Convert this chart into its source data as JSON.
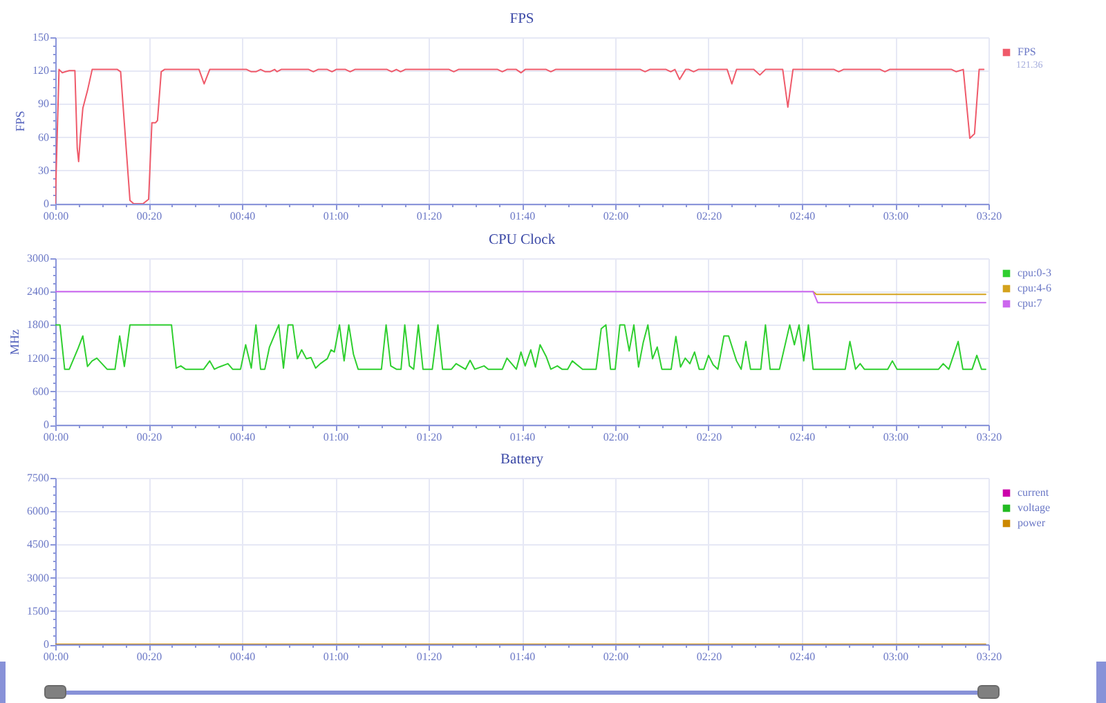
{
  "chart_data": [
    {
      "type": "line",
      "title": "FPS",
      "ylabel": "FPS",
      "xlim": [
        0,
        200
      ],
      "xticks": [
        {
          "value": 0,
          "label": "00:00"
        },
        {
          "value": 5,
          "label": null
        },
        {
          "value": 10,
          "label": null
        },
        {
          "value": 15,
          "label": null
        },
        {
          "value": 20,
          "label": "00:20"
        },
        {
          "value": 25,
          "label": null
        },
        {
          "value": 30,
          "label": null
        },
        {
          "value": 35,
          "label": null
        },
        {
          "value": 40,
          "label": "00:40"
        },
        {
          "value": 45,
          "label": null
        },
        {
          "value": 50,
          "label": null
        },
        {
          "value": 55,
          "label": null
        },
        {
          "value": 60,
          "label": "01:00"
        },
        {
          "value": 65,
          "label": null
        },
        {
          "value": 70,
          "label": null
        },
        {
          "value": 75,
          "label": null
        },
        {
          "value": 80,
          "label": "01:20"
        },
        {
          "value": 85,
          "label": null
        },
        {
          "value": 90,
          "label": null
        },
        {
          "value": 95,
          "label": null
        },
        {
          "value": 100,
          "label": "01:40"
        },
        {
          "value": 105,
          "label": null
        },
        {
          "value": 110,
          "label": null
        },
        {
          "value": 115,
          "label": null
        },
        {
          "value": 120,
          "label": "02:00"
        },
        {
          "value": 125,
          "label": null
        },
        {
          "value": 130,
          "label": null
        },
        {
          "value": 135,
          "label": null
        },
        {
          "value": 140,
          "label": "02:20"
        },
        {
          "value": 145,
          "label": null
        },
        {
          "value": 150,
          "label": null
        },
        {
          "value": 155,
          "label": null
        },
        {
          "value": 160,
          "label": "02:40"
        },
        {
          "value": 165,
          "label": null
        },
        {
          "value": 170,
          "label": null
        },
        {
          "value": 175,
          "label": null
        },
        {
          "value": 180,
          "label": "03:00"
        },
        {
          "value": 185,
          "label": null
        },
        {
          "value": 190,
          "label": null
        },
        {
          "value": 195,
          "label": null
        },
        {
          "value": 200,
          "label": "03:20"
        }
      ],
      "ylim": [
        0,
        150
      ],
      "yticks": [
        0,
        {
          "value": 7.5,
          "label": null
        },
        {
          "value": 15,
          "label": null
        },
        {
          "value": 22.5,
          "label": null
        },
        30,
        {
          "value": 37.5,
          "label": null
        },
        {
          "value": 45,
          "label": null
        },
        {
          "value": 52.5,
          "label": null
        },
        60,
        {
          "value": 67.5,
          "label": null
        },
        {
          "value": 75,
          "label": null
        },
        {
          "value": 82.5,
          "label": null
        },
        90,
        {
          "value": 97.5,
          "label": null
        },
        {
          "value": 105,
          "label": null
        },
        {
          "value": 112.5,
          "label": null
        },
        120,
        {
          "value": 127.5,
          "label": null
        },
        {
          "value": 135,
          "label": null
        },
        {
          "value": 142.5,
          "label": null
        },
        150
      ],
      "grid": true,
      "legend": "top right",
      "annotations": [
        "121.36"
      ],
      "x": [
        0,
        0.8,
        1.5,
        2.2,
        3,
        4.2,
        4.7,
        5,
        5.4,
        5.9,
        6.9,
        7.9,
        13.3,
        14,
        16,
        16.8,
        18.8,
        20,
        20.7,
        21.5,
        21.9,
        22.7,
        23.4,
        30.8,
        31.9,
        33.1,
        41,
        42,
        43,
        44,
        45,
        46,
        47,
        47.5,
        48.4,
        54.3,
        55.3,
        56.3,
        58.3,
        59.3,
        60.2,
        62.2,
        63.2,
        64.2,
        71.1,
        72.1,
        73.1,
        74,
        75,
        84.4,
        85.4,
        86.4,
        94.8,
        95.8,
        96.8,
        98.8,
        99.8,
        100.7,
        105.2,
        106.2,
        107.2,
        125.4,
        126.4,
        127.4,
        130.9,
        131.9,
        132.8,
        133.8,
        135.1,
        135.8,
        136.8,
        137.8,
        144,
        145,
        146,
        149.7,
        151,
        152.2,
        155.9,
        157,
        158.1,
        166.9,
        167.9,
        168.9,
        176.8,
        177.8,
        178.8,
        192.1,
        193.1,
        194.6,
        196,
        197,
        198,
        199
      ],
      "series": [
        {
          "name": "FPS",
          "color": "#ef5a6a",
          "values": [
            0,
            121,
            118,
            119,
            120,
            120,
            50,
            38,
            62,
            86,
            102,
            121,
            121,
            119,
            3,
            0,
            0,
            4,
            73,
            73,
            75,
            119,
            121,
            121,
            108,
            121,
            121,
            119,
            119,
            121,
            119,
            119,
            121,
            119,
            121,
            121,
            119,
            121,
            121,
            119,
            121,
            121,
            119,
            121,
            121,
            119,
            121,
            119,
            121,
            121,
            119,
            121,
            121,
            119,
            121,
            121,
            118,
            121,
            121,
            119,
            121,
            121,
            119,
            121,
            121,
            119,
            121,
            112,
            121,
            121,
            119,
            121,
            121,
            108,
            121,
            121,
            116,
            121,
            121,
            87,
            121,
            121,
            119,
            121,
            121,
            119,
            121,
            121,
            119,
            121,
            59,
            63,
            121,
            121
          ]
        }
      ]
    },
    {
      "type": "line",
      "title": "CPU Clock",
      "ylabel": "MHz",
      "xlim": [
        0,
        200
      ],
      "xticks": [
        {
          "value": 0,
          "label": "00:00"
        },
        {
          "value": 5,
          "label": null
        },
        {
          "value": 10,
          "label": null
        },
        {
          "value": 15,
          "label": null
        },
        {
          "value": 20,
          "label": "00:20"
        },
        {
          "value": 25,
          "label": null
        },
        {
          "value": 30,
          "label": null
        },
        {
          "value": 35,
          "label": null
        },
        {
          "value": 40,
          "label": "00:40"
        },
        {
          "value": 45,
          "label": null
        },
        {
          "value": 50,
          "label": null
        },
        {
          "value": 55,
          "label": null
        },
        {
          "value": 60,
          "label": "01:00"
        },
        {
          "value": 65,
          "label": null
        },
        {
          "value": 70,
          "label": null
        },
        {
          "value": 75,
          "label": null
        },
        {
          "value": 80,
          "label": "01:20"
        },
        {
          "value": 85,
          "label": null
        },
        {
          "value": 90,
          "label": null
        },
        {
          "value": 95,
          "label": null
        },
        {
          "value": 100,
          "label": "01:40"
        },
        {
          "value": 105,
          "label": null
        },
        {
          "value": 110,
          "label": null
        },
        {
          "value": 115,
          "label": null
        },
        {
          "value": 120,
          "label": "02:00"
        },
        {
          "value": 125,
          "label": null
        },
        {
          "value": 130,
          "label": null
        },
        {
          "value": 135,
          "label": null
        },
        {
          "value": 140,
          "label": "02:20"
        },
        {
          "value": 145,
          "label": null
        },
        {
          "value": 150,
          "label": null
        },
        {
          "value": 155,
          "label": null
        },
        {
          "value": 160,
          "label": "02:40"
        },
        {
          "value": 165,
          "label": null
        },
        {
          "value": 170,
          "label": null
        },
        {
          "value": 175,
          "label": null
        },
        {
          "value": 180,
          "label": "03:00"
        },
        {
          "value": 185,
          "label": null
        },
        {
          "value": 190,
          "label": null
        },
        {
          "value": 195,
          "label": null
        },
        {
          "value": 200,
          "label": "03:20"
        }
      ],
      "ylim": [
        0,
        3000
      ],
      "yticks": [
        0,
        {
          "value": 150,
          "label": null
        },
        {
          "value": 300,
          "label": null
        },
        {
          "value": 450,
          "label": null
        },
        600,
        {
          "value": 750,
          "label": null
        },
        {
          "value": 900,
          "label": null
        },
        {
          "value": 1050,
          "label": null
        },
        1200,
        {
          "value": 1350,
          "label": null
        },
        {
          "value": 1500,
          "label": null
        },
        {
          "value": 1650,
          "label": null
        },
        1800,
        {
          "value": 1950,
          "label": null
        },
        {
          "value": 2100,
          "label": null
        },
        {
          "value": 2250,
          "label": null
        },
        2400,
        {
          "value": 2550,
          "label": null
        },
        {
          "value": 2700,
          "label": null
        },
        {
          "value": 2850,
          "label": null
        },
        3000
      ],
      "grid": true,
      "legend": "top right",
      "series": [
        {
          "name": "cpu:0-3",
          "color": "#2fcf2f",
          "x": [
            0,
            1,
            2,
            3,
            4.9,
            5.9,
            6.9,
            7.9,
            8.9,
            11.1,
            12.8,
            13.8,
            14.8,
            16,
            24.9,
            25.9,
            26.9,
            27.9,
            31.8,
            33.1,
            34.1,
            35.1,
            37,
            38,
            39.7,
            40.8,
            42,
            43,
            44,
            44.9,
            45.9,
            47.9,
            48.9,
            49.9,
            50.9,
            51.9,
            52.8,
            53.8,
            54.8,
            55.8,
            56.8,
            58.3,
            59.1,
            59.8,
            60.9,
            61.9,
            62.9,
            63.9,
            64.9,
            69.9,
            70.9,
            71.9,
            73.1,
            74.1,
            74.9,
            75.9,
            76.8,
            77.8,
            78.8,
            80.8,
            82,
            83,
            84.9,
            85.9,
            87.9,
            88.9,
            89.9,
            91.9,
            92.8,
            95.8,
            96.8,
            98.8,
            99.8,
            100.7,
            101.9,
            102.9,
            103.9,
            105.2,
            106.2,
            107.6,
            108.6,
            109.8,
            110.8,
            113,
            115.9,
            117,
            118,
            119,
            120,
            121,
            122,
            123,
            124,
            125,
            126,
            127,
            128,
            129,
            130,
            132,
            133,
            134,
            135,
            136,
            137,
            138,
            139,
            140,
            141,
            142,
            143.3,
            144.3,
            146,
            147,
            148,
            149,
            151.2,
            152.2,
            153.2,
            155.2,
            157.4,
            158.4,
            159.4,
            160.4,
            161.4,
            162.4,
            169.3,
            170.3,
            171.5,
            172.5,
            173.4,
            178.4,
            179.4,
            180.4,
            189.3,
            190.3,
            191.5,
            193.5,
            194.5,
            196.5,
            197.5,
            198.5,
            199.4
          ],
          "values": [
            1800,
            1800,
            1000,
            1000,
            1380,
            1600,
            1050,
            1150,
            1200,
            1000,
            1000,
            1600,
            1050,
            1800,
            1800,
            1020,
            1060,
            1000,
            1000,
            1150,
            1000,
            1040,
            1100,
            1000,
            1000,
            1440,
            1020,
            1800,
            1000,
            1000,
            1400,
            1800,
            1020,
            1800,
            1800,
            1190,
            1350,
            1190,
            1210,
            1020,
            1100,
            1190,
            1350,
            1310,
            1800,
            1150,
            1800,
            1270,
            1000,
            1000,
            1800,
            1060,
            1000,
            1000,
            1800,
            1060,
            1000,
            1800,
            1000,
            1000,
            1800,
            1000,
            1000,
            1100,
            1000,
            1160,
            1000,
            1060,
            1000,
            1000,
            1200,
            1000,
            1310,
            1060,
            1350,
            1040,
            1440,
            1230,
            1000,
            1060,
            1000,
            1000,
            1150,
            1000,
            1000,
            1730,
            1800,
            1000,
            1000,
            1800,
            1800,
            1330,
            1800,
            1040,
            1480,
            1800,
            1190,
            1400,
            1000,
            1000,
            1590,
            1040,
            1200,
            1100,
            1310,
            1000,
            1000,
            1250,
            1080,
            1000,
            1600,
            1600,
            1150,
            1000,
            1500,
            1000,
            1000,
            1800,
            1000,
            1000,
            1800,
            1440,
            1800,
            1150,
            1800,
            1000,
            1000,
            1500,
            1000,
            1100,
            1000,
            1000,
            1150,
            1000,
            1000,
            1100,
            1000,
            1500,
            1000,
            1000,
            1250,
            1000,
            1000
          ]
        },
        {
          "name": "cpu:4-6",
          "color": "#d4a21c",
          "x": [
            162.4,
            163.1,
            199.4
          ],
          "values": [
            2400,
            2350,
            2350
          ]
        },
        {
          "name": "cpu:7",
          "color": "#cc66ee",
          "x": [
            0,
            162.4,
            163.4,
            199.4
          ],
          "values": [
            2400,
            2400,
            2200,
            2200
          ]
        }
      ]
    },
    {
      "type": "line",
      "title": "Battery",
      "xlim": [
        0,
        200
      ],
      "xticks": [
        {
          "value": 0,
          "label": "00:00"
        },
        {
          "value": 5,
          "label": null
        },
        {
          "value": 10,
          "label": null
        },
        {
          "value": 15,
          "label": null
        },
        {
          "value": 20,
          "label": "00:20"
        },
        {
          "value": 25,
          "label": null
        },
        {
          "value": 30,
          "label": null
        },
        {
          "value": 35,
          "label": null
        },
        {
          "value": 40,
          "label": "00:40"
        },
        {
          "value": 45,
          "label": null
        },
        {
          "value": 50,
          "label": null
        },
        {
          "value": 55,
          "label": null
        },
        {
          "value": 60,
          "label": "01:00"
        },
        {
          "value": 65,
          "label": null
        },
        {
          "value": 70,
          "label": null
        },
        {
          "value": 75,
          "label": null
        },
        {
          "value": 80,
          "label": "01:20"
        },
        {
          "value": 85,
          "label": null
        },
        {
          "value": 90,
          "label": null
        },
        {
          "value": 95,
          "label": null
        },
        {
          "value": 100,
          "label": "01:40"
        },
        {
          "value": 105,
          "label": null
        },
        {
          "value": 110,
          "label": null
        },
        {
          "value": 115,
          "label": null
        },
        {
          "value": 120,
          "label": "02:00"
        },
        {
          "value": 125,
          "label": null
        },
        {
          "value": 130,
          "label": null
        },
        {
          "value": 135,
          "label": null
        },
        {
          "value": 140,
          "label": "02:20"
        },
        {
          "value": 145,
          "label": null
        },
        {
          "value": 150,
          "label": null
        },
        {
          "value": 155,
          "label": null
        },
        {
          "value": 160,
          "label": "02:40"
        },
        {
          "value": 165,
          "label": null
        },
        {
          "value": 170,
          "label": null
        },
        {
          "value": 175,
          "label": null
        },
        {
          "value": 180,
          "label": "03:00"
        },
        {
          "value": 185,
          "label": null
        },
        {
          "value": 190,
          "label": null
        },
        {
          "value": 195,
          "label": null
        },
        {
          "value": 200,
          "label": "03:20"
        }
      ],
      "ylim": [
        0,
        7500
      ],
      "yticks": [
        0,
        {
          "value": 375,
          "label": null
        },
        {
          "value": 750,
          "label": null
        },
        {
          "value": 1125,
          "label": null
        },
        1500,
        {
          "value": 1875,
          "label": null
        },
        {
          "value": 2250,
          "label": null
        },
        {
          "value": 2625,
          "label": null
        },
        3000,
        {
          "value": 3375,
          "label": null
        },
        {
          "value": 3750,
          "label": null
        },
        {
          "value": 4125,
          "label": null
        },
        4500,
        {
          "value": 4875,
          "label": null
        },
        {
          "value": 5250,
          "label": null
        },
        {
          "value": 5625,
          "label": null
        },
        6000,
        {
          "value": 6375,
          "label": null
        },
        {
          "value": 6750,
          "label": null
        },
        {
          "value": 7125,
          "label": null
        },
        7500
      ],
      "grid": true,
      "legend": "top right",
      "x": [
        0,
        199.4
      ],
      "series": [
        {
          "name": "current",
          "color": "#cc00aa",
          "values": [
            null,
            null
          ]
        },
        {
          "name": "voltage",
          "color": "#22bb22",
          "values": [
            null,
            null
          ]
        },
        {
          "name": "power",
          "color": "#cc8800",
          "values": [
            0,
            0
          ]
        }
      ]
    }
  ]
}
